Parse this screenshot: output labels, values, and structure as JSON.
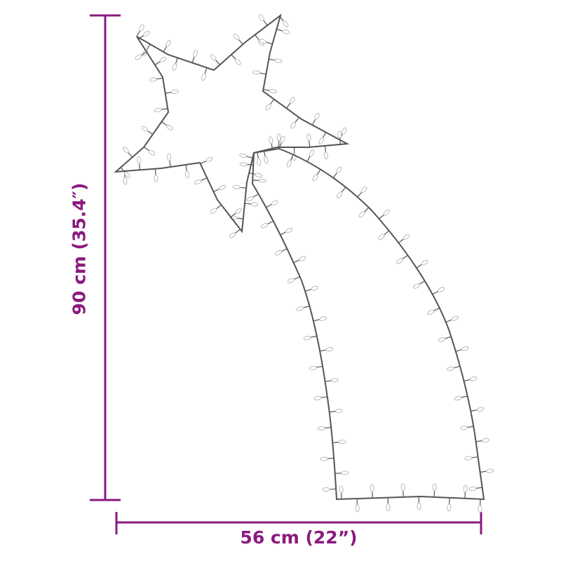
{
  "dimensions": {
    "width_label": "56 cm (22”)",
    "height_label": "90 cm (35.4″)"
  },
  "colors": {
    "dimension": "#8a1a7e",
    "wire": "#555555",
    "bulb": "#bbbbbb"
  },
  "product": {
    "shape": "shooting-star light silhouette"
  }
}
